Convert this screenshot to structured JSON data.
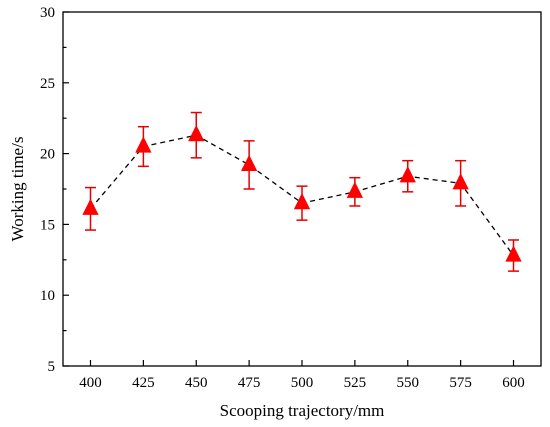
{
  "chart_data": {
    "type": "line",
    "xlabel": "Scooping trajectory/mm",
    "ylabel": "Working time/s",
    "x": [
      400,
      425,
      450,
      475,
      500,
      525,
      550,
      575,
      600
    ],
    "x_tick_labels": [
      "400",
      "425",
      "450",
      "475",
      "500",
      "525",
      "550",
      "575",
      "600"
    ],
    "y_tick_labels": [
      "5",
      "10",
      "15",
      "20",
      "25",
      "30"
    ],
    "xlim": [
      387,
      613
    ],
    "ylim": [
      5,
      30
    ],
    "y_ticks": [
      5,
      10,
      15,
      20,
      25,
      30
    ],
    "y_minor_step": 2.5,
    "grid": false,
    "series": [
      {
        "values": [
          16.1,
          20.5,
          21.3,
          19.2,
          16.5,
          17.3,
          18.4,
          17.9,
          12.8
        ],
        "error": [
          1.5,
          1.4,
          1.6,
          1.7,
          1.2,
          1.0,
          1.1,
          1.6,
          1.1
        ],
        "color": "#ff0000",
        "line_color": "#000000",
        "line_style": "dashed",
        "marker": "triangle"
      }
    ]
  }
}
